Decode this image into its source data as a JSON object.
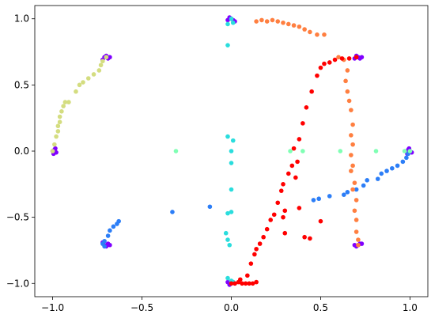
{
  "chart_data": {
    "type": "scatter",
    "title": "",
    "xlabel": "",
    "ylabel": "",
    "xlim": [
      -1.1,
      1.1
    ],
    "ylim": [
      -1.1,
      1.1
    ],
    "xticks": [
      -1.0,
      -0.5,
      0.0,
      0.5,
      1.0
    ],
    "xtick_labels": [
      "−1.0",
      "−0.5",
      "0.0",
      "0.5",
      "1.0"
    ],
    "yticks": [
      -1.0,
      -0.5,
      0.0,
      0.5,
      1.0
    ],
    "ytick_labels": [
      "−1.0",
      "−0.5",
      "0.0",
      "0.5",
      "1.0"
    ],
    "grid": false,
    "legend": "none",
    "series": [
      {
        "color": "#8000ff",
        "points": [
          [
            -1.0,
            0.0
          ],
          [
            -0.99,
            0.01
          ],
          [
            -0.98,
            -0.01
          ],
          [
            -0.995,
            -0.02
          ],
          [
            -0.985,
            0.02
          ],
          [
            -0.71,
            0.71
          ],
          [
            -0.7,
            0.72
          ],
          [
            -0.69,
            0.7
          ],
          [
            -0.72,
            0.69
          ],
          [
            -0.68,
            0.71
          ],
          [
            0.0,
            1.0
          ],
          [
            0.01,
            0.99
          ],
          [
            -0.01,
            1.01
          ],
          [
            0.02,
            0.98
          ],
          [
            -0.02,
            0.99
          ],
          [
            0.71,
            0.71
          ],
          [
            0.72,
            0.7
          ],
          [
            0.7,
            0.72
          ],
          [
            0.73,
            0.71
          ],
          [
            0.69,
            0.7
          ],
          [
            1.0,
            0.0
          ],
          [
            0.99,
            0.01
          ],
          [
            1.01,
            -0.01
          ],
          [
            0.995,
            0.02
          ],
          [
            0.985,
            -0.02
          ],
          [
            0.71,
            -0.71
          ],
          [
            0.72,
            -0.7
          ],
          [
            0.7,
            -0.72
          ],
          [
            0.69,
            -0.71
          ],
          [
            0.73,
            -0.7
          ],
          [
            0.0,
            -1.0
          ],
          [
            0.01,
            -0.99
          ],
          [
            -0.01,
            -1.01
          ],
          [
            0.02,
            -1.0
          ],
          [
            -0.02,
            -0.99
          ],
          [
            -0.71,
            -0.71
          ],
          [
            -0.7,
            -0.72
          ],
          [
            -0.69,
            -0.7
          ],
          [
            -0.72,
            -0.69
          ],
          [
            -0.68,
            -0.71
          ]
        ]
      },
      {
        "color": "#2c7ef7",
        "points": [
          [
            1.0,
            0.0
          ],
          [
            0.99,
            -0.02
          ],
          [
            0.98,
            -0.05
          ],
          [
            0.96,
            -0.08
          ],
          [
            0.93,
            -0.11
          ],
          [
            0.9,
            -0.13
          ],
          [
            0.87,
            -0.15
          ],
          [
            0.84,
            -0.17
          ],
          [
            0.82,
            -0.21
          ],
          [
            0.76,
            -0.22
          ],
          [
            0.74,
            -0.26
          ],
          [
            0.7,
            -0.29
          ],
          [
            0.65,
            -0.31
          ],
          [
            0.63,
            -0.33
          ],
          [
            0.55,
            -0.34
          ],
          [
            0.49,
            -0.36
          ],
          [
            0.46,
            -0.37
          ],
          [
            -0.33,
            -0.46
          ],
          [
            -0.12,
            -0.42
          ],
          [
            -0.63,
            -0.53
          ],
          [
            -0.64,
            -0.55
          ],
          [
            -0.66,
            -0.57
          ],
          [
            -0.68,
            -0.6
          ],
          [
            -0.69,
            -0.64
          ],
          [
            -0.71,
            -0.68
          ],
          [
            -0.72,
            -0.7
          ],
          [
            -0.71,
            -0.72
          ]
        ]
      },
      {
        "color": "#2adddd",
        "points": [
          [
            0.0,
            1.0
          ],
          [
            -0.02,
            0.96
          ],
          [
            0.01,
            0.97
          ],
          [
            -0.02,
            0.8
          ],
          [
            -0.02,
            0.11
          ],
          [
            0.01,
            0.08
          ],
          [
            0.0,
            0.0
          ],
          [
            0.0,
            -0.09
          ],
          [
            0.0,
            -0.29
          ],
          [
            -0.02,
            -0.47
          ],
          [
            0.0,
            -0.46
          ],
          [
            -0.03,
            -0.62
          ],
          [
            -0.02,
            -0.67
          ],
          [
            -0.01,
            -0.71
          ],
          [
            -0.02,
            -0.96
          ],
          [
            0.0,
            -0.98
          ],
          [
            0.0,
            -1.0
          ],
          [
            0.01,
            -0.99
          ]
        ]
      },
      {
        "color": "#80ffb4",
        "points": [
          [
            -0.31,
            0.0
          ],
          [
            0.33,
            0.0
          ],
          [
            0.4,
            0.0
          ],
          [
            0.61,
            0.0
          ],
          [
            0.81,
            0.0
          ],
          [
            0.97,
            0.0
          ],
          [
            1.0,
            0.0
          ]
        ]
      },
      {
        "color": "#d4dd80",
        "points": [
          [
            -1.0,
            0.0
          ],
          [
            -0.99,
            0.05
          ],
          [
            -0.98,
            0.11
          ],
          [
            -0.97,
            0.15
          ],
          [
            -0.97,
            0.19
          ],
          [
            -0.96,
            0.22
          ],
          [
            -0.96,
            0.26
          ],
          [
            -0.95,
            0.3
          ],
          [
            -0.94,
            0.34
          ],
          [
            -0.93,
            0.37
          ],
          [
            -0.91,
            0.37
          ],
          [
            -0.87,
            0.45
          ],
          [
            -0.85,
            0.5
          ],
          [
            -0.83,
            0.52
          ],
          [
            -0.8,
            0.55
          ],
          [
            -0.77,
            0.58
          ],
          [
            -0.74,
            0.61
          ],
          [
            -0.73,
            0.65
          ],
          [
            -0.72,
            0.68
          ],
          [
            -0.7,
            0.71
          ]
        ]
      },
      {
        "color": "#ff7f40",
        "points": [
          [
            0.14,
            0.98
          ],
          [
            0.17,
            0.99
          ],
          [
            0.2,
            0.98
          ],
          [
            0.23,
            0.99
          ],
          [
            0.26,
            0.98
          ],
          [
            0.29,
            0.97
          ],
          [
            0.32,
            0.96
          ],
          [
            0.35,
            0.95
          ],
          [
            0.38,
            0.94
          ],
          [
            0.41,
            0.92
          ],
          [
            0.44,
            0.9
          ],
          [
            0.48,
            0.88
          ],
          [
            0.52,
            0.88
          ],
          [
            0.6,
            0.71
          ],
          [
            0.63,
            0.69
          ],
          [
            0.65,
            0.61
          ],
          [
            0.64,
            0.53
          ],
          [
            0.65,
            0.45
          ],
          [
            0.66,
            0.38
          ],
          [
            0.67,
            0.31
          ],
          [
            0.68,
            0.2
          ],
          [
            0.67,
            0.12
          ],
          [
            0.68,
            0.05
          ],
          [
            0.67,
            -0.03
          ],
          [
            0.68,
            -0.11
          ],
          [
            0.67,
            -0.15
          ],
          [
            0.69,
            -0.24
          ],
          [
            0.68,
            -0.29
          ],
          [
            0.7,
            -0.37
          ],
          [
            0.69,
            -0.45
          ],
          [
            0.7,
            -0.52
          ],
          [
            0.7,
            -0.61
          ],
          [
            0.71,
            -0.67
          ],
          [
            0.71,
            -0.71
          ]
        ]
      },
      {
        "color": "#ff0000",
        "points": [
          [
            0.0,
            -1.0
          ],
          [
            0.02,
            -1.0
          ],
          [
            0.04,
            -0.99
          ],
          [
            0.06,
            -1.0
          ],
          [
            0.08,
            -1.0
          ],
          [
            0.1,
            -1.0
          ],
          [
            0.12,
            -1.0
          ],
          [
            0.14,
            -0.99
          ],
          [
            0.05,
            -0.97
          ],
          [
            0.09,
            -0.94
          ],
          [
            0.11,
            -0.85
          ],
          [
            0.13,
            -0.78
          ],
          [
            0.14,
            -0.74
          ],
          [
            0.16,
            -0.7
          ],
          [
            0.18,
            -0.65
          ],
          [
            0.2,
            -0.59
          ],
          [
            0.22,
            -0.52
          ],
          [
            0.24,
            -0.48
          ],
          [
            0.26,
            -0.39
          ],
          [
            0.28,
            -0.3
          ],
          [
            0.29,
            -0.25
          ],
          [
            0.32,
            -0.17
          ],
          [
            0.34,
            -0.11
          ],
          [
            0.37,
            -0.08
          ],
          [
            0.35,
            0.02
          ],
          [
            0.38,
            0.09
          ],
          [
            0.4,
            0.21
          ],
          [
            0.42,
            0.33
          ],
          [
            0.45,
            0.45
          ],
          [
            0.48,
            0.57
          ],
          [
            0.5,
            0.63
          ],
          [
            0.52,
            0.66
          ],
          [
            0.55,
            0.67
          ],
          [
            0.58,
            0.69
          ],
          [
            0.62,
            0.7
          ],
          [
            0.66,
            0.7
          ],
          [
            0.7,
            0.71
          ],
          [
            0.29,
            -0.5
          ],
          [
            0.38,
            -0.43
          ],
          [
            0.41,
            -0.65
          ],
          [
            0.44,
            -0.66
          ],
          [
            0.3,
            -0.62
          ],
          [
            0.5,
            -0.53
          ],
          [
            0.36,
            -0.2
          ],
          [
            0.3,
            -0.45
          ]
        ]
      }
    ]
  }
}
